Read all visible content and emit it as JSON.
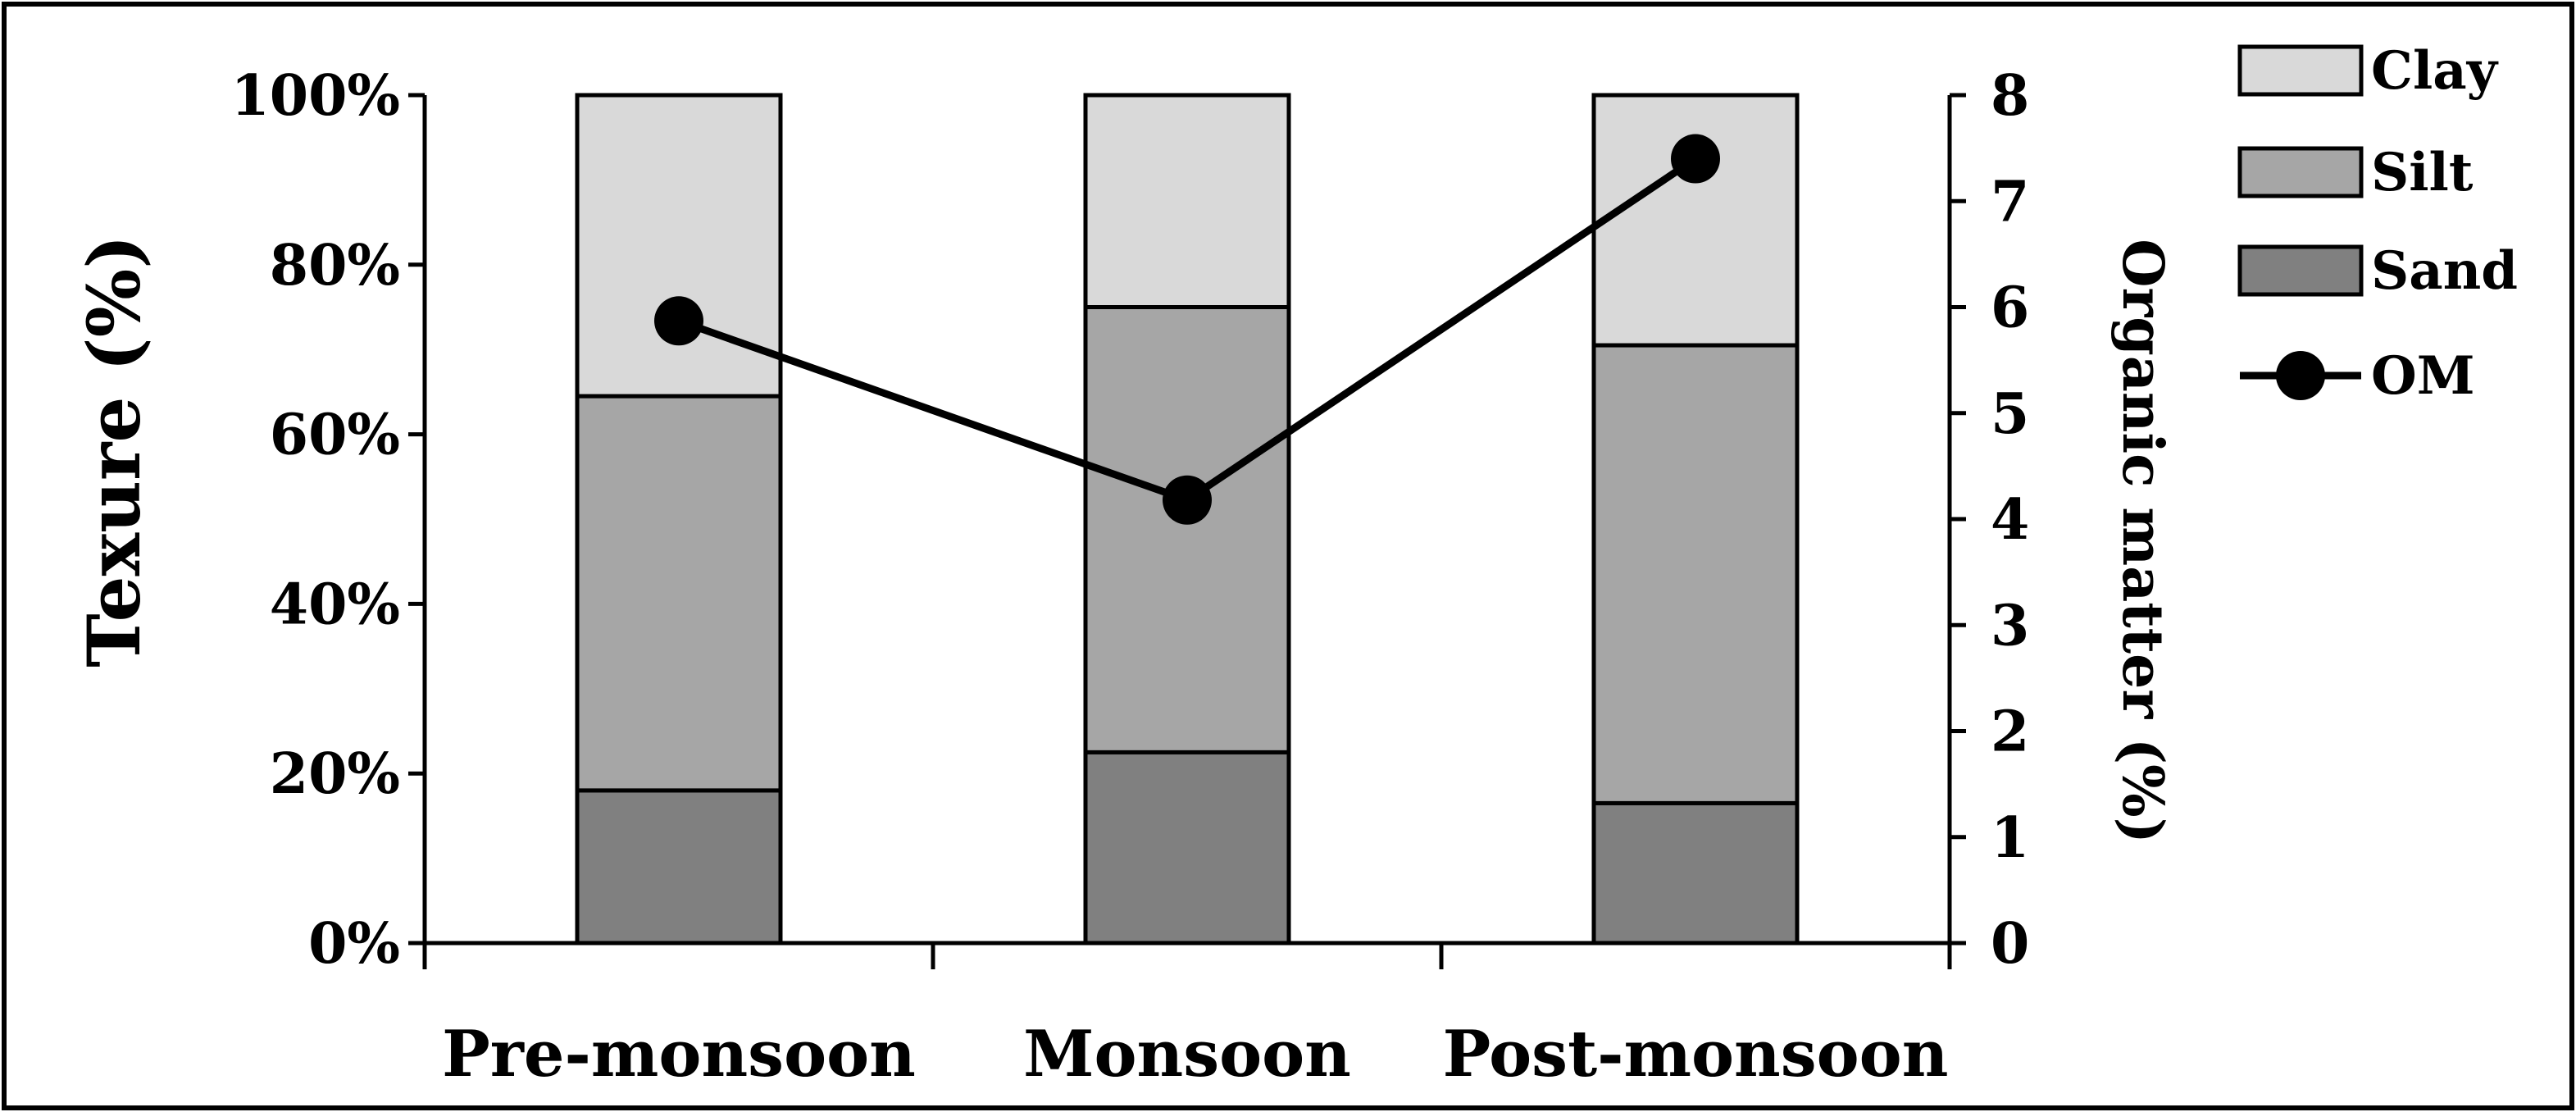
{
  "chart_data": {
    "type": "bar",
    "stacked": true,
    "categories": [
      "Pre-monsoon",
      "Monsoon",
      "Post-monsoon"
    ],
    "series": [
      {
        "name": "Sand",
        "values": [
          18,
          22.5,
          16.5
        ],
        "color": "#808080"
      },
      {
        "name": "Silt",
        "values": [
          46.5,
          52.5,
          54
        ],
        "color": "#a6a6a6"
      },
      {
        "name": "Clay",
        "values": [
          35.5,
          25,
          29.5
        ],
        "color": "#d9d9d9"
      }
    ],
    "line_series": {
      "name": "OM",
      "values": [
        5.87,
        4.18,
        7.4
      ],
      "color": "#000000",
      "axis": "right"
    },
    "ylabel": "Texure (%)",
    "y2label": "Organic matter (%)",
    "ylim": [
      0,
      100
    ],
    "y2lim": [
      0,
      8
    ],
    "yticks": [
      "0%",
      "20%",
      "40%",
      "60%",
      "80%",
      "100%"
    ],
    "y2ticks": [
      "0",
      "1",
      "2",
      "3",
      "4",
      "5",
      "6",
      "7",
      "8"
    ],
    "legend": {
      "placement": "top-right",
      "entries": [
        "Clay",
        "Silt",
        "Sand",
        "OM"
      ]
    }
  }
}
